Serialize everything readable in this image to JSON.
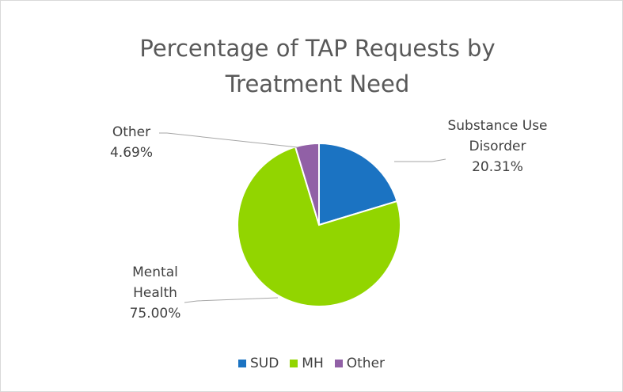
{
  "chart_data": {
    "type": "pie",
    "title": "Percentage of TAP Requests by Treatment Need",
    "categories": [
      "SUD",
      "MH",
      "Other"
    ],
    "data_label_names": [
      "Substance Use Disorder",
      "Mental Health",
      "Other"
    ],
    "values": [
      20.31,
      75.0,
      4.69
    ],
    "value_labels": [
      "20.31%",
      "75.00%",
      "4.69%"
    ],
    "colors": [
      "#1b73c2",
      "#92d500",
      "#9160a6"
    ],
    "legend": "bottom"
  }
}
